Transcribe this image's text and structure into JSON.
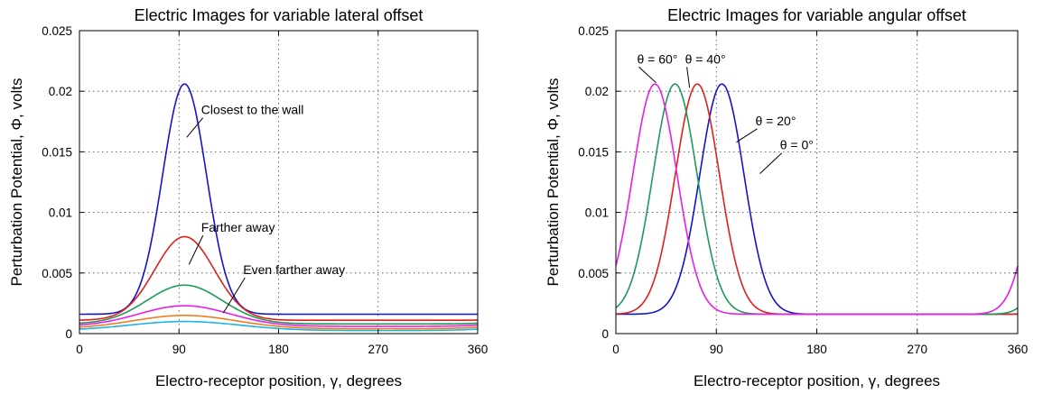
{
  "chart_data": [
    {
      "type": "line",
      "title": "Electric Images for variable lateral offset",
      "xlabel": "Electro-receptor position, γ, degrees",
      "ylabel": "Perturbation Potential, Φ, volts",
      "xlim": [
        0,
        360
      ],
      "ylim": [
        0,
        0.025
      ],
      "xticks": [
        0,
        90,
        180,
        270,
        360
      ],
      "xtick_labels": [
        "0",
        "90",
        "180",
        "270",
        "360"
      ],
      "yticks": [
        0,
        0.005,
        0.01,
        0.015,
        0.02,
        0.025
      ],
      "ytick_labels": [
        "0",
        "0.005",
        "0.01",
        "0.015",
        "0.02",
        "0.025"
      ],
      "grid": true,
      "series": [
        {
          "color": "#1414cc",
          "peak_x": 95,
          "peak_y": 0.0206,
          "min_x": 275,
          "min_y": 0.0016,
          "width": 28
        },
        {
          "color": "#e0201b",
          "peak_x": 95,
          "peak_y": 0.008,
          "min_x": 275,
          "min_y": 0.0011,
          "width": 38
        },
        {
          "color": "#1e9a57",
          "peak_x": 95,
          "peak_y": 0.004,
          "min_x": 275,
          "min_y": 0.0008,
          "width": 48
        },
        {
          "color": "#e81ee6",
          "peak_x": 95,
          "peak_y": 0.0023,
          "min_x": 275,
          "min_y": 0.0006,
          "width": 58
        },
        {
          "color": "#f07c1e",
          "peak_x": 95,
          "peak_y": 0.0015,
          "min_x": 275,
          "min_y": 0.0004,
          "width": 65
        },
        {
          "color": "#1eb4e6",
          "peak_x": 95,
          "peak_y": 0.001,
          "min_x": 275,
          "min_y": 0.00025,
          "width": 70
        }
      ],
      "annotations": [
        {
          "text": "Closest to the wall",
          "x": 110,
          "y": 0.0181,
          "point_x": 97,
          "point_y": 0.0162
        },
        {
          "text": "Farther away",
          "x": 110,
          "y": 0.0084,
          "point_x": 99,
          "point_y": 0.0057
        },
        {
          "text": "Even farther away",
          "x": 148,
          "y": 0.0049,
          "point_x": 130,
          "point_y": 0.0017
        }
      ]
    },
    {
      "type": "line",
      "title": "Electric Images for variable angular offset",
      "xlabel": "Electro-receptor position, γ, degrees",
      "ylabel": "Perturbation Potential, Φ, volts",
      "xlim": [
        0,
        360
      ],
      "ylim": [
        0,
        0.025
      ],
      "xticks": [
        0,
        90,
        180,
        270,
        360
      ],
      "xtick_labels": [
        "0",
        "90",
        "180",
        "270",
        "360"
      ],
      "yticks": [
        0,
        0.005,
        0.01,
        0.015,
        0.02,
        0.025
      ],
      "ytick_labels": [
        "0",
        "0.005",
        "0.01",
        "0.015",
        "0.02",
        "0.025"
      ],
      "grid": true,
      "series": [
        {
          "color": "#1414cc",
          "peak_x": 95,
          "peak_y": 0.0206,
          "min_x": 240,
          "min_y": 0.0016,
          "width": 28
        },
        {
          "color": "#e0201b",
          "peak_x": 73,
          "peak_y": 0.0206,
          "min_x": 240,
          "min_y": 0.0016,
          "width": 28
        },
        {
          "color": "#1e9a57",
          "peak_x": 53,
          "peak_y": 0.0206,
          "min_x": 240,
          "min_y": 0.0016,
          "width": 28
        },
        {
          "color": "#e81ee6",
          "peak_x": 35,
          "peak_y": 0.0206,
          "min_x": 240,
          "min_y": 0.0016,
          "width": 28
        }
      ],
      "annotations": [
        {
          "text": "θ = 60°",
          "x": 19,
          "y": 0.0223,
          "point_x": 36,
          "point_y": 0.0207
        },
        {
          "text": "θ = 40°",
          "x": 62,
          "y": 0.0223,
          "point_x": 66,
          "point_y": 0.0203
        },
        {
          "text": "θ = 20°",
          "x": 125,
          "y": 0.0172,
          "point_x": 108,
          "point_y": 0.0158
        },
        {
          "text": "θ = 0°",
          "x": 147,
          "y": 0.0152,
          "point_x": 129,
          "point_y": 0.0132
        }
      ]
    }
  ]
}
